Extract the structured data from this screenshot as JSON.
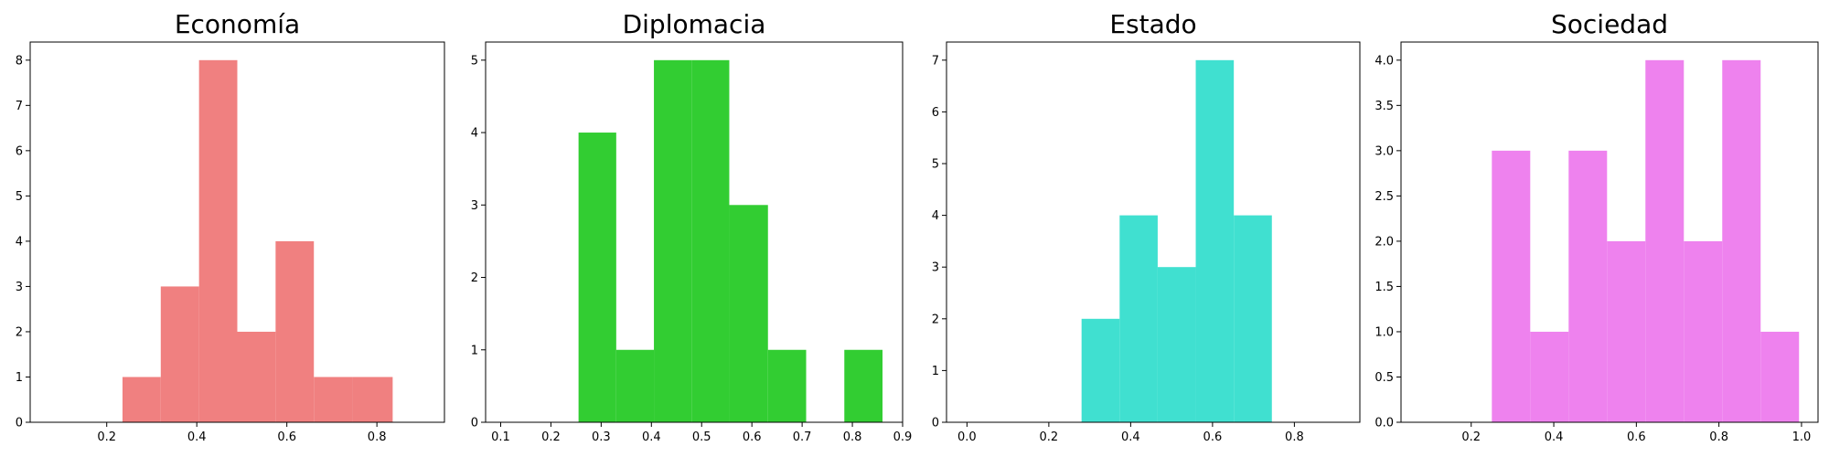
{
  "chart_data": [
    {
      "type": "bar",
      "title": "Economía",
      "color": "#F08080",
      "bins": [
        {
          "x0": 0.235,
          "x1": 0.32,
          "count": 1
        },
        {
          "x0": 0.32,
          "x1": 0.405,
          "count": 3
        },
        {
          "x0": 0.405,
          "x1": 0.49,
          "count": 8
        },
        {
          "x0": 0.49,
          "x1": 0.575,
          "count": 2
        },
        {
          "x0": 0.575,
          "x1": 0.66,
          "count": 4
        },
        {
          "x0": 0.66,
          "x1": 0.745,
          "count": 1
        },
        {
          "x0": 0.745,
          "x1": 0.835,
          "count": 1
        }
      ],
      "xlim": [
        0.03,
        0.95
      ],
      "ylim": [
        0,
        8.4
      ],
      "xticks": [
        0.2,
        0.4,
        0.6,
        0.8
      ],
      "yticks": [
        0,
        1,
        2,
        3,
        4,
        5,
        6,
        7,
        8
      ],
      "xtick_labels": [
        "0.2",
        "0.4",
        "0.6",
        "0.8"
      ],
      "ytick_labels": [
        "0",
        "1",
        "2",
        "3",
        "4",
        "5",
        "6",
        "7",
        "8"
      ],
      "xlabel": "",
      "ylabel": "",
      "grid": false
    },
    {
      "type": "bar",
      "title": "Diplomacia",
      "color": "#32CD32",
      "bins": [
        {
          "x0": 0.255,
          "x1": 0.33,
          "count": 4
        },
        {
          "x0": 0.33,
          "x1": 0.405,
          "count": 1
        },
        {
          "x0": 0.405,
          "x1": 0.48,
          "count": 5
        },
        {
          "x0": 0.48,
          "x1": 0.555,
          "count": 5
        },
        {
          "x0": 0.555,
          "x1": 0.632,
          "count": 3
        },
        {
          "x0": 0.632,
          "x1": 0.708,
          "count": 1
        },
        {
          "x0": 0.784,
          "x1": 0.86,
          "count": 1
        }
      ],
      "xlim": [
        0.07,
        0.9
      ],
      "ylim": [
        0,
        5.25
      ],
      "xticks": [
        0.1,
        0.2,
        0.3,
        0.4,
        0.5,
        0.6,
        0.7,
        0.8,
        0.9
      ],
      "yticks": [
        0,
        1,
        2,
        3,
        4,
        5
      ],
      "xtick_labels": [
        "0.1",
        "0.2",
        "0.3",
        "0.4",
        "0.5",
        "0.6",
        "0.7",
        "0.8",
        "0.9"
      ],
      "ytick_labels": [
        "0",
        "1",
        "2",
        "3",
        "4",
        "5"
      ],
      "xlabel": "",
      "ylabel": "",
      "grid": false
    },
    {
      "type": "bar",
      "title": "Estado",
      "color": "#40E0D0",
      "bins": [
        {
          "x0": 0.28,
          "x1": 0.373,
          "count": 2
        },
        {
          "x0": 0.373,
          "x1": 0.466,
          "count": 4
        },
        {
          "x0": 0.466,
          "x1": 0.559,
          "count": 3
        },
        {
          "x0": 0.559,
          "x1": 0.652,
          "count": 7
        },
        {
          "x0": 0.652,
          "x1": 0.745,
          "count": 4
        }
      ],
      "xlim": [
        -0.05,
        0.96
      ],
      "ylim": [
        0,
        7.35
      ],
      "xticks": [
        0.0,
        0.2,
        0.4,
        0.6,
        0.8
      ],
      "yticks": [
        0,
        1,
        2,
        3,
        4,
        5,
        6,
        7
      ],
      "xtick_labels": [
        "0.0",
        "0.2",
        "0.4",
        "0.6",
        "0.8"
      ],
      "ytick_labels": [
        "0",
        "1",
        "2",
        "3",
        "4",
        "5",
        "6",
        "7"
      ],
      "xlabel": "",
      "ylabel": "",
      "grid": false
    },
    {
      "type": "bar",
      "title": "Sociedad",
      "color": "#EE82EE",
      "bins": [
        {
          "x0": 0.25,
          "x1": 0.343,
          "count": 3
        },
        {
          "x0": 0.343,
          "x1": 0.436,
          "count": 1
        },
        {
          "x0": 0.436,
          "x1": 0.529,
          "count": 3
        },
        {
          "x0": 0.529,
          "x1": 0.622,
          "count": 2
        },
        {
          "x0": 0.622,
          "x1": 0.715,
          "count": 4
        },
        {
          "x0": 0.715,
          "x1": 0.808,
          "count": 2
        },
        {
          "x0": 0.808,
          "x1": 0.901,
          "count": 4
        },
        {
          "x0": 0.901,
          "x1": 0.994,
          "count": 1
        }
      ],
      "xlim": [
        0.03,
        1.04
      ],
      "ylim": [
        0,
        4.2
      ],
      "xticks": [
        0.2,
        0.4,
        0.6,
        0.8,
        1.0
      ],
      "yticks": [
        0.0,
        0.5,
        1.0,
        1.5,
        2.0,
        2.5,
        3.0,
        3.5,
        4.0
      ],
      "xtick_labels": [
        "0.2",
        "0.4",
        "0.6",
        "0.8",
        "1.0"
      ],
      "ytick_labels": [
        "0.0",
        "0.5",
        "1.0",
        "1.5",
        "2.0",
        "2.5",
        "3.0",
        "3.5",
        "4.0"
      ],
      "xlabel": "",
      "ylabel": "",
      "grid": false
    }
  ]
}
